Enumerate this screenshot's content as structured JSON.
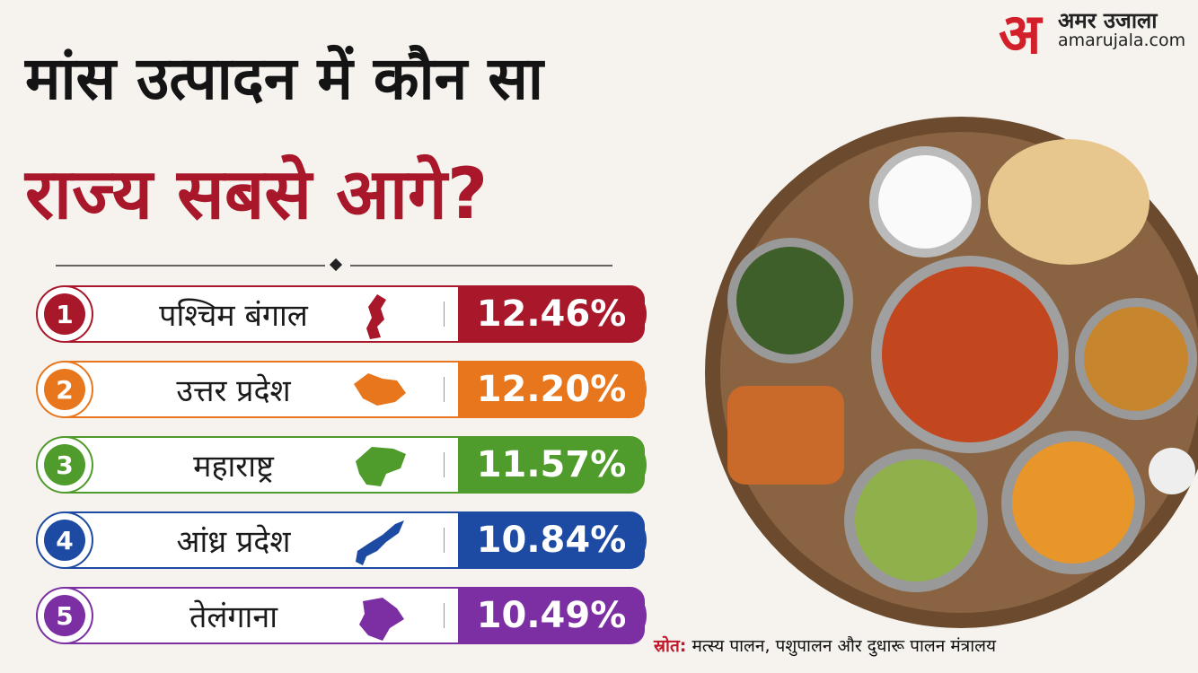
{
  "header": {
    "title_line1": "मांस उत्पादन में कौन सा",
    "title_line2": "राज्य सबसे आगे?"
  },
  "logo": {
    "letter": "अ",
    "name": "अमर उजाला",
    "site": "amarujala.com"
  },
  "rows": [
    {
      "rank": "1",
      "state": "पश्चिम बंगाल",
      "value": "12.46%"
    },
    {
      "rank": "2",
      "state": "उत्तर प्रदेश",
      "value": "12.20%"
    },
    {
      "rank": "3",
      "state": "महाराष्ट्र",
      "value": "11.57%"
    },
    {
      "rank": "4",
      "state": "आंध्र प्रदेश",
      "value": "10.84%"
    },
    {
      "rank": "5",
      "state": "तेलंगाना",
      "value": "10.49%"
    }
  ],
  "source": {
    "label": "स्रोत:",
    "text": "मत्स्य पालन, पशुपालन और दुधारू पालन मंत्रालय"
  }
}
